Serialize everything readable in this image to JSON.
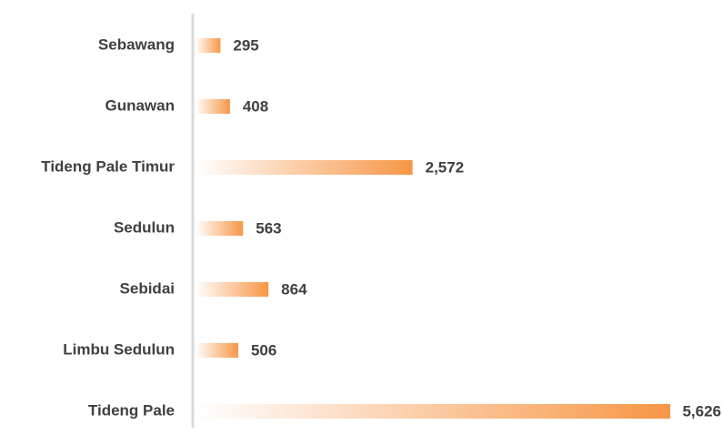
{
  "chart_data": {
    "type": "bar",
    "orientation": "horizontal",
    "categories": [
      "Sebawang",
      "Gunawan",
      "Tideng Pale Timur",
      "Sedulun",
      "Sebidai",
      "Limbu Sedulun",
      "Tideng Pale"
    ],
    "values": [
      295,
      408,
      2572,
      563,
      864,
      506,
      5626
    ],
    "value_labels": [
      "295",
      "408",
      "2,572",
      "563",
      "864",
      "506",
      "5,626"
    ],
    "color": "#f79646"
  }
}
